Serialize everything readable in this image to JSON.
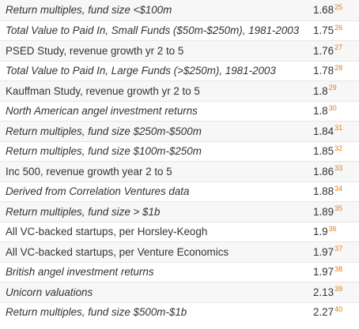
{
  "rows": [
    {
      "label": "Return multiples, fund size <$100m",
      "italic": true,
      "value": "1.68",
      "ref": "25"
    },
    {
      "label": "Total Value to Paid In, Small Funds ($50m-$250m), 1981-2003",
      "italic": true,
      "value": "1.75",
      "ref": "26"
    },
    {
      "label": "PSED Study, revenue growth yr 2 to 5",
      "italic": false,
      "value": "1.76",
      "ref": "27"
    },
    {
      "label": "Total Value to Paid In, Large Funds (>$250m), 1981-2003",
      "italic": true,
      "value": "1.78",
      "ref": "28"
    },
    {
      "label": "Kauffman Study, revenue growth yr 2 to 5",
      "italic": false,
      "value": "1.8",
      "ref": "29"
    },
    {
      "label": "North American angel investment returns",
      "italic": true,
      "value": "1.8",
      "ref": "30"
    },
    {
      "label": "Return multiples, fund size $250m-$500m",
      "italic": true,
      "value": "1.84",
      "ref": "31"
    },
    {
      "label": "Return multiples, fund size $100m-$250m",
      "italic": true,
      "value": "1.85",
      "ref": "32"
    },
    {
      "label": "Inc 500, revenue growth year 2 to 5",
      "italic": false,
      "value": "1.86",
      "ref": "33"
    },
    {
      "label": "Derived from Correlation Ventures data",
      "italic": true,
      "value": "1.88",
      "ref": "34"
    },
    {
      "label": "Return multiples, fund size > $1b",
      "italic": true,
      "value": "1.89",
      "ref": "35"
    },
    {
      "label": "All VC-backed startups, per Horsley-Keogh",
      "italic": false,
      "value": "1.9",
      "ref": "36"
    },
    {
      "label": "All VC-backed startups, per Venture Economics",
      "italic": false,
      "value": "1.97",
      "ref": "37"
    },
    {
      "label": "British angel investment returns",
      "italic": true,
      "value": "1.97",
      "ref": "38"
    },
    {
      "label": "Unicorn valuations",
      "italic": true,
      "value": "2.13",
      "ref": "39"
    },
    {
      "label": "Return multiples, fund size $500m-$1b",
      "italic": true,
      "value": "2.27",
      "ref": "40"
    }
  ],
  "colors": {
    "ref_link": "#e07b18",
    "row_stripe": "#f7f7f7",
    "text": "#333333"
  }
}
